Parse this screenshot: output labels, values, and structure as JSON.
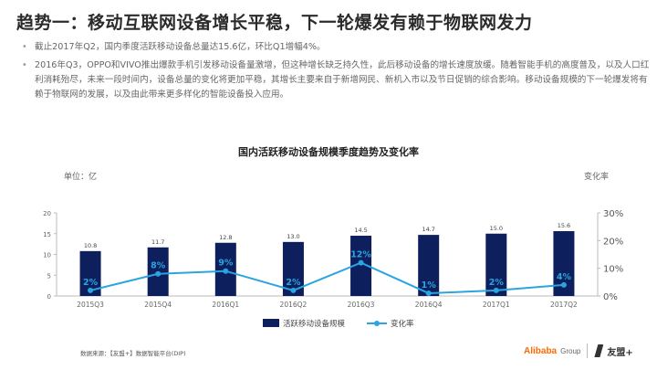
{
  "slide": {
    "title": "趋势一：移动互联网设备增长平稳，下一轮爆发有赖于物联网发力",
    "bullets": [
      "截止2017年Q2，国内季度活跃移动设备总量达15.6亿，环比Q1增幅4%。",
      "2016年Q3，OPPO和VIVO推出爆款手机引发移动设备量激增，但这种增长缺乏持久性，此后移动设备的增长速度放缓。随着智能手机的高度普及，以及人口红利消耗殆尽，未来一段时间内，设备总量的变化将更加平稳，其增长主要来自于新增网民、新机入市以及节日促销的综合影响。移动设备规模的下一轮爆发将有赖于物联网的发展，以及由此带来更多样化的智能设备投入应用。"
    ]
  },
  "chart_data": {
    "type": "bar",
    "title": "国内活跃移动设备规模季度趋势及变化率",
    "unit_left": "单位：亿",
    "unit_right": "变化率",
    "categories": [
      "2015Q3",
      "2015Q4",
      "2016Q1",
      "2016Q2",
      "2016Q3",
      "2016Q4",
      "2017Q1",
      "2017Q2"
    ],
    "series": [
      {
        "name": "活跃移动设备规模",
        "type": "bar",
        "axis": "left",
        "values": [
          10.8,
          11.7,
          12.8,
          13.0,
          14.5,
          14.7,
          15.0,
          15.6
        ],
        "labels": [
          "10.8",
          "11.7",
          "12.8",
          "13.0",
          "14.5",
          "14.7",
          "15.0",
          "15.6"
        ],
        "color": "#0d1f5c"
      },
      {
        "name": "变化率",
        "type": "line",
        "axis": "right",
        "values": [
          2,
          8,
          9,
          2,
          12,
          1,
          2,
          4
        ],
        "labels": [
          "2%",
          "8%",
          "9%",
          "2%",
          "12%",
          "1%",
          "2%",
          "4%"
        ],
        "color": "#2aa5df"
      }
    ],
    "y_left": {
      "min": 0,
      "max": 20,
      "ticks": [
        0,
        5,
        10,
        15,
        20
      ],
      "tick_labels": [
        "0",
        "5",
        "10",
        "15",
        "20"
      ]
    },
    "y_right": {
      "min": 0,
      "max": 30,
      "ticks": [
        0,
        10,
        20,
        30
      ],
      "tick_labels": [
        "0%",
        "10%",
        "20%",
        "30%"
      ]
    },
    "grid": false,
    "legend_position": "bottom"
  },
  "footer": {
    "source": "数据来源：【友盟+】数据智能平台(DIP)",
    "logo_alibaba": "Alibaba",
    "logo_group": "Group",
    "logo_umeng": "友盟+"
  },
  "colors": {
    "bar": "#0d1f5c",
    "line": "#2aa5df",
    "accent_logo": "#ff6a00"
  }
}
